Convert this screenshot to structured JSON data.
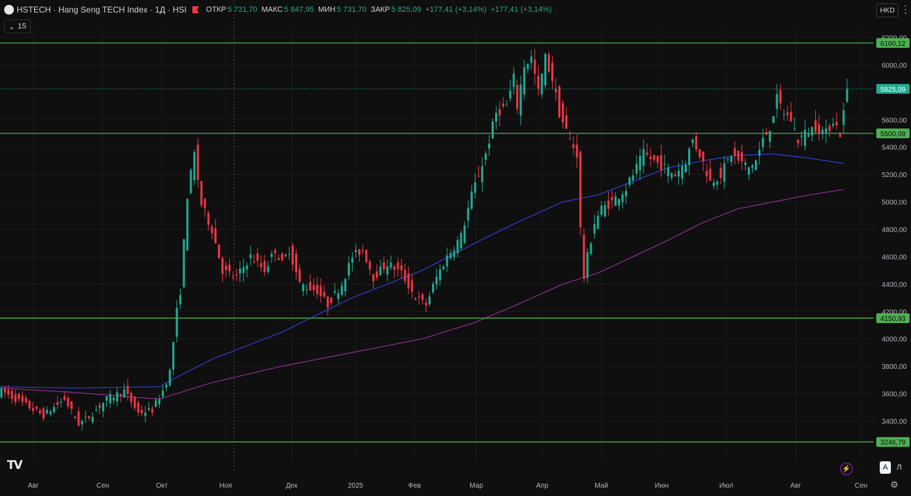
{
  "header": {
    "title": "HSTECH · Hang Seng TECH Index · 1Д · HSI",
    "ohlc": [
      {
        "label": "ОТКР",
        "value": "5 731,70"
      },
      {
        "label": "МАКС",
        "value": "5 847,95"
      },
      {
        "label": "МИН",
        "value": "5 731,70"
      },
      {
        "label": "ЗАКР",
        "value": "5 825,09"
      }
    ],
    "change": "+177,41 (+3,14%)",
    "change2": "+177,41 (+3,14%)"
  },
  "toolbar": {
    "interval": "15",
    "currency": "HKD"
  },
  "scale_buttons": {
    "auto": "A",
    "log": "Л"
  },
  "colors": {
    "background": "#0f0f0f",
    "up": "#22ab94",
    "down": "#f23645",
    "ma_blue": "#2f3ed1",
    "ma_purple": "#8e2d94",
    "hline": "#4caf50",
    "text": "#b2b5be"
  },
  "chart_data": {
    "type": "candlestick",
    "title": "HSTECH · Hang Seng TECH Index · 1Д · HSI",
    "ylim": [
      3180,
      6240
    ],
    "y_ticks": [
      "6200,00",
      "6000,00",
      "5600,00",
      "5400,00",
      "5200,00",
      "5000,00",
      "4800,00",
      "4600,00",
      "4400,00",
      "4200,00",
      "4000,00",
      "3800,00",
      "3600,00",
      "3400,00"
    ],
    "x_ticks": [
      "Авг",
      "Сен",
      "Окт",
      "Ноя",
      "Дек",
      "2025",
      "Фев",
      "Мар",
      "Апр",
      "Май",
      "Июн",
      "Июл",
      "Авг",
      "Сен"
    ],
    "horizontal_levels": [
      "6160,12",
      "5500,09",
      "4150,93",
      "3246,79"
    ],
    "last_price": "5825,09",
    "price_path": [
      [
        0,
        3620
      ],
      [
        8,
        3500
      ],
      [
        12,
        3440
      ],
      [
        18,
        3560
      ],
      [
        22,
        3380
      ],
      [
        25,
        3430
      ],
      [
        30,
        3560
      ],
      [
        35,
        3620
      ],
      [
        39,
        3460
      ],
      [
        43,
        3480
      ],
      [
        46,
        3620
      ],
      [
        48,
        3760
      ],
      [
        50,
        4200
      ],
      [
        51,
        4350
      ],
      [
        53,
        5050
      ],
      [
        54,
        5200
      ],
      [
        55,
        5350
      ],
      [
        57,
        4980
      ],
      [
        60,
        4800
      ],
      [
        63,
        4500
      ],
      [
        67,
        4450
      ],
      [
        71,
        4600
      ],
      [
        75,
        4500
      ],
      [
        78,
        4650
      ],
      [
        80,
        4550
      ],
      [
        82,
        4650
      ],
      [
        85,
        4400
      ],
      [
        90,
        4350
      ],
      [
        93,
        4250
      ],
      [
        97,
        4400
      ],
      [
        100,
        4600
      ],
      [
        103,
        4650
      ],
      [
        106,
        4450
      ],
      [
        110,
        4550
      ],
      [
        114,
        4480
      ],
      [
        118,
        4300
      ],
      [
        121,
        4250
      ],
      [
        124,
        4450
      ],
      [
        127,
        4600
      ],
      [
        131,
        4750
      ],
      [
        134,
        5050
      ],
      [
        138,
        5350
      ],
      [
        141,
        5650
      ],
      [
        144,
        5700
      ],
      [
        146,
        5900
      ],
      [
        147,
        5700
      ],
      [
        149,
        6000
      ],
      [
        151,
        6050
      ],
      [
        153,
        5800
      ],
      [
        155,
        6050
      ],
      [
        157,
        5900
      ],
      [
        159,
        5650
      ],
      [
        162,
        5450
      ],
      [
        164,
        5350
      ],
      [
        165,
        4800
      ],
      [
        166,
        4450
      ],
      [
        167,
        4600
      ],
      [
        169,
        4850
      ],
      [
        171,
        4950
      ],
      [
        174,
        5000
      ],
      [
        178,
        5100
      ],
      [
        181,
        5250
      ],
      [
        183,
        5350
      ],
      [
        186,
        5300
      ],
      [
        189,
        5250
      ],
      [
        192,
        5200
      ],
      [
        195,
        5300
      ],
      [
        197,
        5450
      ],
      [
        199,
        5350
      ],
      [
        202,
        5150
      ],
      [
        205,
        5200
      ],
      [
        208,
        5350
      ],
      [
        210,
        5300
      ],
      [
        213,
        5250
      ],
      [
        215,
        5300
      ],
      [
        217,
        5450
      ],
      [
        219,
        5550
      ],
      [
        221,
        5750
      ],
      [
        223,
        5650
      ],
      [
        225,
        5600
      ],
      [
        227,
        5450
      ],
      [
        229,
        5500
      ],
      [
        232,
        5550
      ],
      [
        235,
        5500
      ],
      [
        237,
        5600
      ],
      [
        239,
        5500
      ],
      [
        240,
        5650
      ],
      [
        241,
        5825
      ]
    ],
    "series": [
      {
        "values": [
          [
            0,
            3650
          ],
          [
            20,
            3640
          ],
          [
            45,
            3650
          ],
          [
            50,
            3720
          ],
          [
            60,
            3850
          ],
          [
            80,
            4050
          ],
          [
            100,
            4300
          ],
          [
            120,
            4500
          ],
          [
            135,
            4700
          ],
          [
            147,
            4850
          ],
          [
            160,
            5000
          ],
          [
            170,
            5050
          ],
          [
            180,
            5150
          ],
          [
            190,
            5250
          ],
          [
            200,
            5300
          ],
          [
            210,
            5340
          ],
          [
            220,
            5350
          ],
          [
            230,
            5320
          ],
          [
            240,
            5280
          ]
        ]
      },
      {
        "values": [
          [
            0,
            3640
          ],
          [
            20,
            3610
          ],
          [
            45,
            3560
          ],
          [
            50,
            3600
          ],
          [
            60,
            3680
          ],
          [
            80,
            3800
          ],
          [
            100,
            3900
          ],
          [
            120,
            4000
          ],
          [
            135,
            4120
          ],
          [
            147,
            4250
          ],
          [
            160,
            4400
          ],
          [
            170,
            4480
          ],
          [
            180,
            4600
          ],
          [
            190,
            4720
          ],
          [
            200,
            4850
          ],
          [
            210,
            4950
          ],
          [
            220,
            5000
          ],
          [
            230,
            5050
          ],
          [
            240,
            5090
          ]
        ]
      }
    ]
  }
}
